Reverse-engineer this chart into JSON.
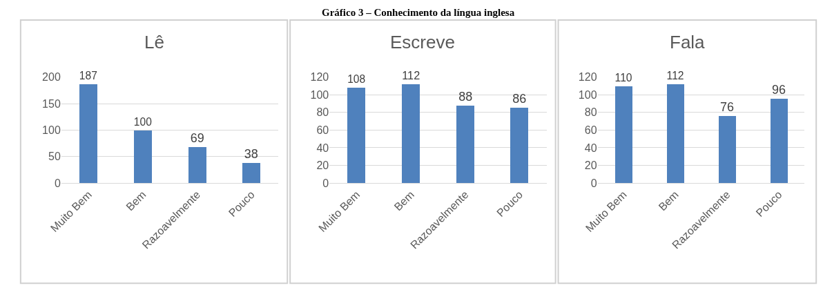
{
  "chart_data": [
    {
      "type": "bar",
      "title": "Lê",
      "annotations": [
        "Gráfico 3 – Conhecimento da língua inglesa"
      ],
      "categories": [
        "Muito Bem",
        "Bem",
        "Razoavelmente",
        "Pouco"
      ],
      "values": [
        187,
        100,
        69,
        38
      ],
      "color": "#4f81bd",
      "ylim": [
        0,
        200
      ],
      "yticks": [
        0,
        50,
        100,
        150,
        200
      ],
      "grid": "y",
      "data_labels": true
    },
    {
      "type": "bar",
      "title": "Escreve",
      "categories": [
        "Muito Bem",
        "Bem",
        "Razoavelmente",
        "Pouco"
      ],
      "values": [
        108,
        112,
        88,
        86
      ],
      "color": "#4f81bd",
      "ylim": [
        0,
        120
      ],
      "yticks": [
        0,
        20,
        40,
        60,
        80,
        100,
        120
      ],
      "grid": "y",
      "data_labels": true
    },
    {
      "type": "bar",
      "title": "Fala",
      "categories": [
        "Muito Bem",
        "Bem",
        "Razoavelmente",
        "Pouco"
      ],
      "values": [
        110,
        112,
        76,
        96
      ],
      "color": "#4f81bd",
      "ylim": [
        0,
        120
      ],
      "yticks": [
        0,
        20,
        40,
        60,
        80,
        100,
        120
      ],
      "grid": "y",
      "data_labels": true
    }
  ]
}
